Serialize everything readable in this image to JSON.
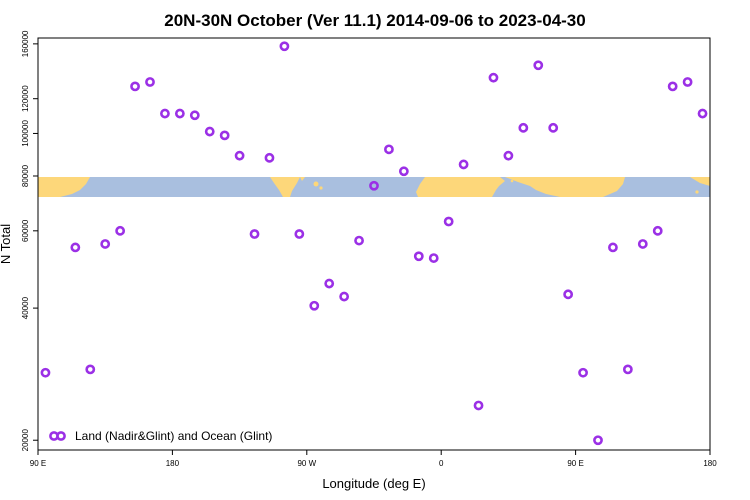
{
  "chart_data": {
    "type": "scatter",
    "title": "20N-30N October (Ver 11.1)   2014-09-06 to 2023-04-30",
    "xlabel": "Longitude (deg E)",
    "ylabel": "N Total",
    "x_tick_labels": [
      "90 E",
      "180",
      "90 W",
      "0",
      "90 E",
      "180"
    ],
    "x_tick_values": [
      90,
      180,
      270,
      360,
      450,
      540
    ],
    "xlim": [
      90,
      540
    ],
    "y_scale": "log",
    "y_tick_labels": [
      "20000",
      "40000",
      "60000",
      "80000",
      "100000",
      "120000",
      "160000"
    ],
    "y_tick_values": [
      20000,
      40000,
      60000,
      80000,
      100000,
      120000,
      160000
    ],
    "ylim": [
      19000,
      165000
    ],
    "legend": {
      "label": "Land (Nadir&Glint) and Ocean (Glint)",
      "position": "bottom-left"
    },
    "map_strip": {
      "ocean_color": "#a9bfdf",
      "land_color": "#fdd77a"
    },
    "marker_color": "#9b30e6",
    "series": [
      {
        "name": "Land (Nadir&Glint) and Ocean (Glint)",
        "points": [
          [
            95,
            28500
          ],
          [
            115,
            55000
          ],
          [
            125,
            29000
          ],
          [
            135,
            56000
          ],
          [
            145,
            60000
          ],
          [
            155,
            128000
          ],
          [
            165,
            131000
          ],
          [
            175,
            111000
          ],
          [
            185,
            111000
          ],
          [
            195,
            110000
          ],
          [
            205,
            101000
          ],
          [
            215,
            99000
          ],
          [
            225,
            89000
          ],
          [
            235,
            59000
          ],
          [
            245,
            88000
          ],
          [
            255,
            158000
          ],
          [
            265,
            59000
          ],
          [
            275,
            40500
          ],
          [
            285,
            45500
          ],
          [
            295,
            42500
          ],
          [
            305,
            57000
          ],
          [
            315,
            76000
          ],
          [
            325,
            92000
          ],
          [
            335,
            82000
          ],
          [
            345,
            52500
          ],
          [
            355,
            52000
          ],
          [
            365,
            63000
          ],
          [
            375,
            85000
          ],
          [
            385,
            24000
          ],
          [
            395,
            134000
          ],
          [
            405,
            89000
          ],
          [
            415,
            103000
          ],
          [
            425,
            143000
          ],
          [
            435,
            103000
          ],
          [
            445,
            43000
          ],
          [
            455,
            28500
          ],
          [
            465,
            20000
          ],
          [
            475,
            55000
          ],
          [
            485,
            29000
          ],
          [
            495,
            56000
          ],
          [
            505,
            60000
          ],
          [
            515,
            128000
          ],
          [
            525,
            131000
          ],
          [
            535,
            111000
          ]
        ]
      }
    ]
  }
}
